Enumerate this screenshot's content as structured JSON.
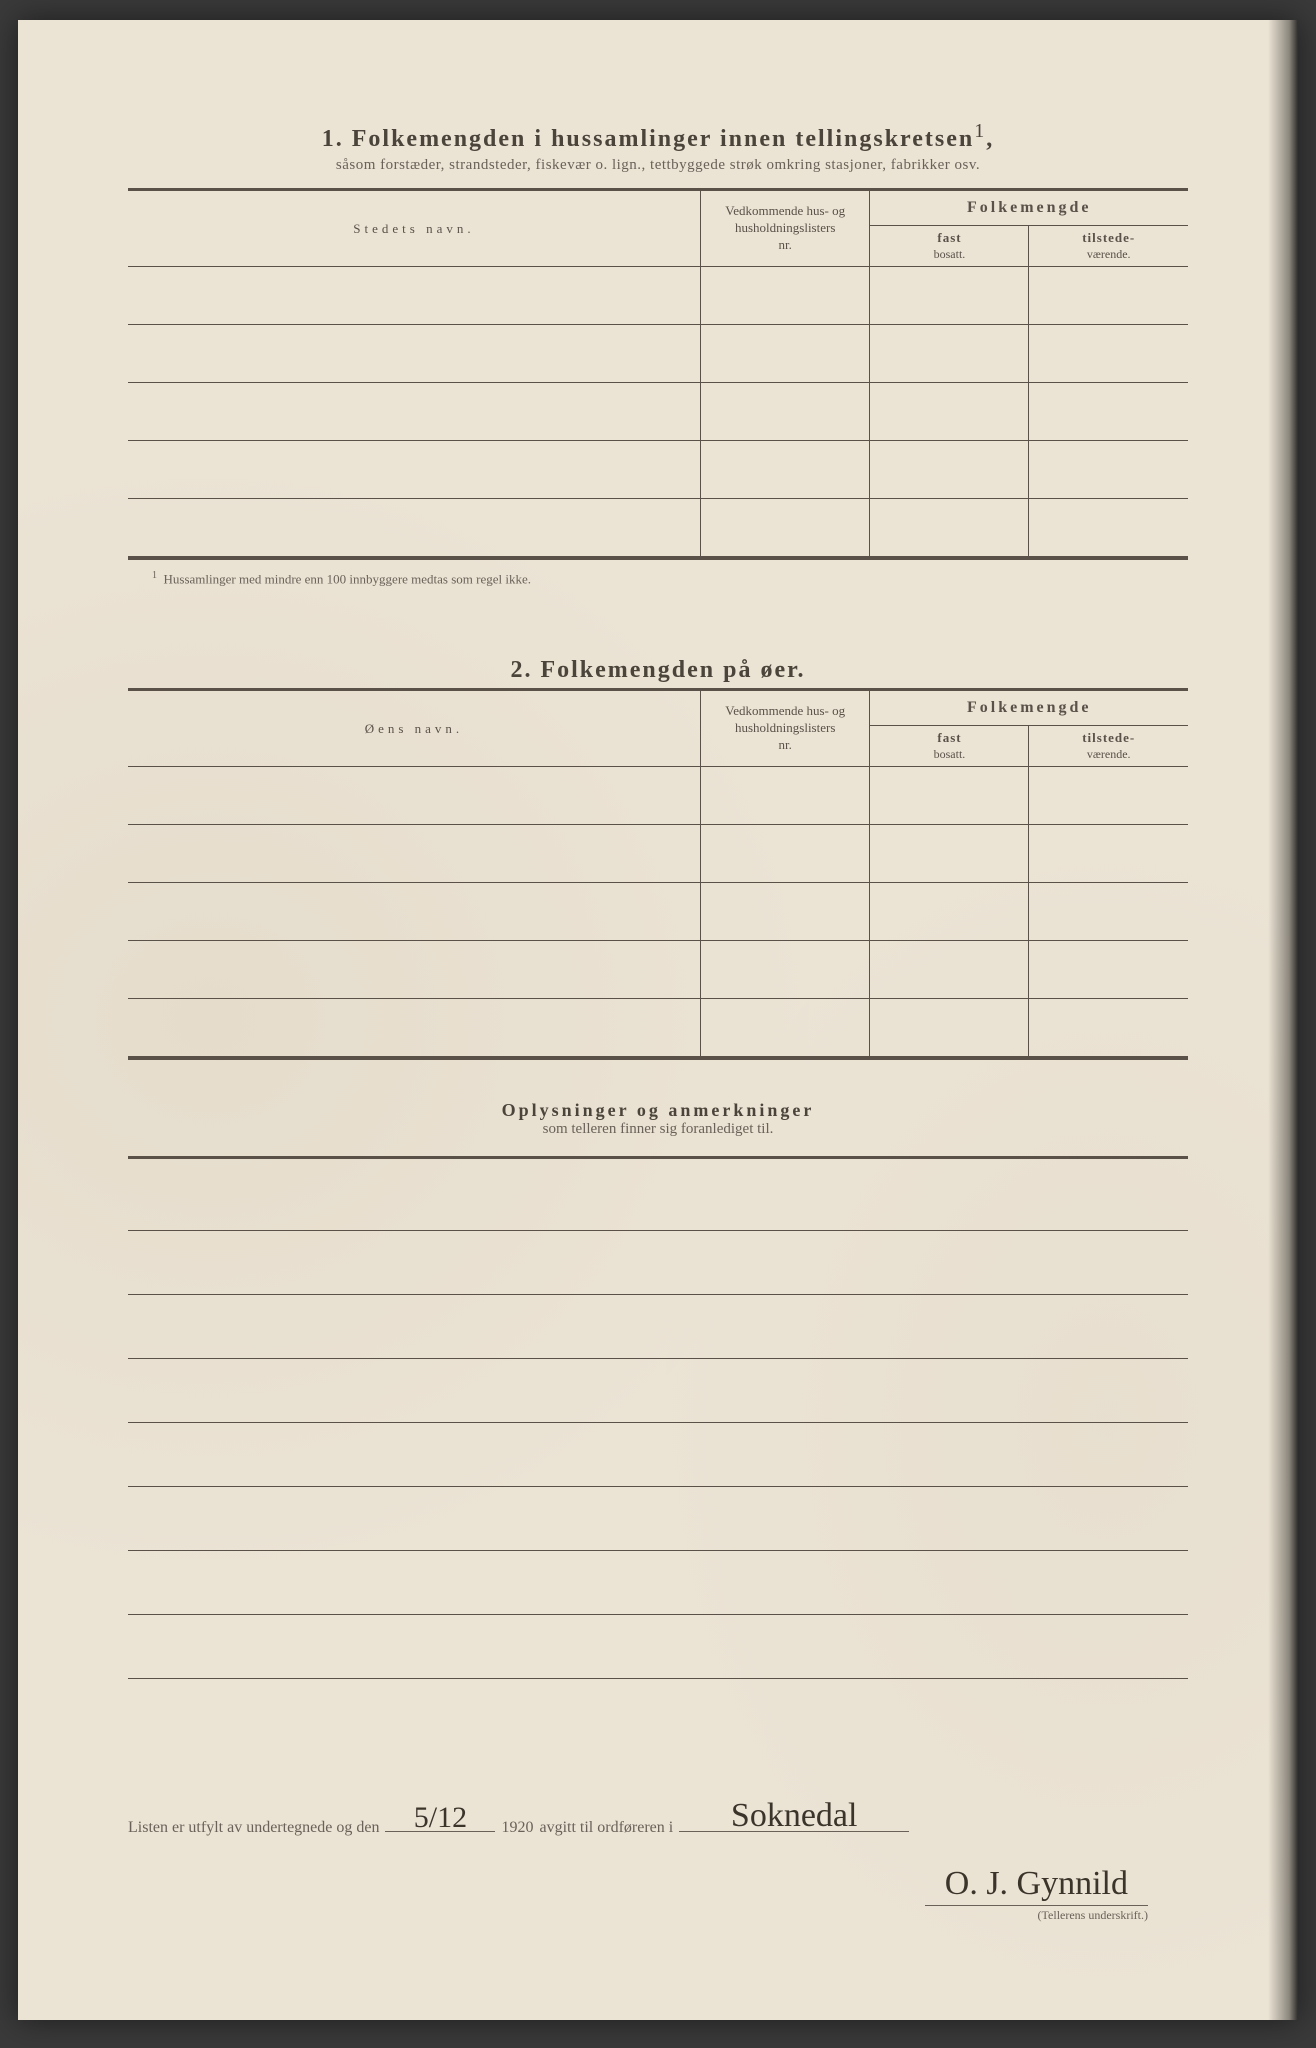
{
  "section1": {
    "number": "1.",
    "title_bold": "Folkemengden i hussamlinger innen tellingskretsen",
    "title_sup": "1",
    "subtitle": "såsom forstæder, strandsteder, fiskevær o. lign., tettbyggede strøk omkring stasjoner, fabrikker osv.",
    "col_name": "Stedets navn.",
    "col_ref_l1": "Vedkommende hus- og",
    "col_ref_l2": "husholdningslisters",
    "col_ref_l3": "nr.",
    "col_folk": "Folkemengde",
    "col_fast_l1": "fast",
    "col_fast_l2": "bosatt.",
    "col_tils_l1": "tilstede-",
    "col_tils_l2": "værende.",
    "footnote_sup": "1",
    "footnote": "Hussamlinger med mindre enn 100 innbyggere medtas som regel ikke.",
    "row_count": 5
  },
  "section2": {
    "number": "2.",
    "title": "Folkemengden på øer.",
    "col_name": "Øens navn.",
    "row_count": 5
  },
  "section3": {
    "title": "Oplysninger og anmerkninger",
    "subtitle": "som telleren finner sig foranlediget til.",
    "line_count": 8
  },
  "signoff": {
    "text_a": "Listen er utfylt av undertegnede og den",
    "date": "5/12",
    "year": "1920",
    "text_b": "avgitt til ordføreren i",
    "place": "Soknedal",
    "signature": "O. J. Gynnild",
    "caption": "(Tellerens underskrift.)"
  },
  "colors": {
    "paper": "#ebe3d4",
    "ink": "#5a5248",
    "faded": "#6a6258",
    "handwriting": "#3a342a"
  }
}
